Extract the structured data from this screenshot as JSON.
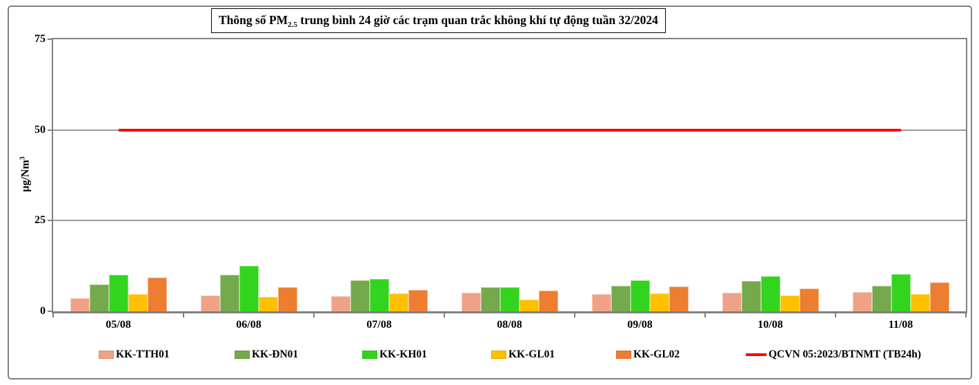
{
  "title": {
    "prefix": "Thông số PM",
    "subscript": "2.5",
    "suffix": " trung bình 24 giờ các trạm quan trắc không khí tự động tuần 32/2024"
  },
  "y_axis": {
    "unit_prefix": "µg/Nm",
    "unit_exponent": "3"
  },
  "chart_data": {
    "type": "bar",
    "title": "Thông số PM2.5 trung bình 24 giờ các trạm quan trắc không khí tự động tuần 32/2024",
    "ylabel": "µg/Nm³",
    "ylim": [
      0,
      75
    ],
    "yticks": [
      0,
      25,
      50,
      75
    ],
    "grid": true,
    "legend_position": "bottom",
    "categories": [
      "05/08",
      "06/08",
      "07/08",
      "08/08",
      "09/08",
      "10/08",
      "11/08"
    ],
    "series": [
      {
        "name": "KK-TTH01",
        "type": "bar",
        "color": "#F0A287",
        "values": [
          3.7,
          4.3,
          4.2,
          5.2,
          4.7,
          5.1,
          5.4
        ]
      },
      {
        "name": "KK-ĐN01",
        "type": "bar",
        "color": "#74A94C",
        "values": [
          7.5,
          10.1,
          8.5,
          6.6,
          7.1,
          8.3,
          7.0
        ]
      },
      {
        "name": "KK-KH01",
        "type": "bar",
        "color": "#33D41E",
        "values": [
          10.0,
          12.6,
          9.0,
          6.6,
          8.6,
          9.7,
          10.2
        ]
      },
      {
        "name": "KK-GL01",
        "type": "bar",
        "color": "#FFC000",
        "values": [
          4.8,
          4.0,
          4.9,
          3.3,
          4.9,
          4.3,
          4.7
        ]
      },
      {
        "name": "KK-GL02",
        "type": "bar",
        "color": "#ED7D31",
        "values": [
          9.4,
          6.6,
          5.8,
          5.7,
          6.8,
          6.2,
          7.9
        ]
      },
      {
        "name": "QCVN 05:2023/BTNMT (TB24h)",
        "type": "line",
        "color": "#FF0000",
        "values": [
          50,
          50,
          50,
          50,
          50,
          50,
          50
        ]
      }
    ],
    "colors": {
      "axis": "#808080",
      "gridline": "#9a9a9a",
      "threshold": "#FF0000"
    }
  }
}
